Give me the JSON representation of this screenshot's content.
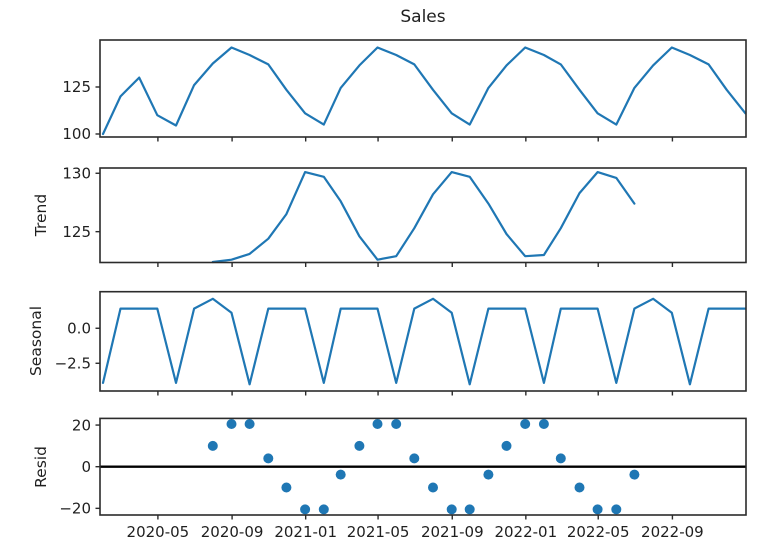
{
  "chart_data": {
    "type": "line",
    "title": "Sales",
    "description": "Seasonal decomposition: observed, trend, seasonal, residual panels sharing a monthly date axis",
    "colors": {
      "line": "#1f77b4",
      "marker": "#1f77b4",
      "zero_line": "#000000",
      "spine": "#2b2b2b",
      "text": "#1f1f1f"
    },
    "x_axis": {
      "tick_labels": [
        "2020-05",
        "2020-09",
        "2021-01",
        "2021-05",
        "2021-09",
        "2022-01",
        "2022-05",
        "2022-09"
      ],
      "tick_days": [
        91,
        214,
        336,
        456,
        579,
        701,
        821,
        944
      ],
      "range_days": [
        -5,
        1066
      ]
    },
    "months": [
      "2020-01",
      "2020-02",
      "2020-03",
      "2020-04",
      "2020-05",
      "2020-06",
      "2020-07",
      "2020-08",
      "2020-09",
      "2020-10",
      "2020-11",
      "2020-12",
      "2021-01",
      "2021-02",
      "2021-03",
      "2021-04",
      "2021-05",
      "2021-06",
      "2021-07",
      "2021-08",
      "2021-09",
      "2021-10",
      "2021-11",
      "2021-12",
      "2022-01",
      "2022-02",
      "2022-03",
      "2022-04",
      "2022-05",
      "2022-06",
      "2022-07",
      "2022-08",
      "2022-09",
      "2022-10",
      "2022-11",
      "2022-12"
    ],
    "point_days": [
      0,
      29,
      60,
      90,
      121,
      151,
      182,
      213,
      243,
      274,
      304,
      335,
      366,
      394,
      425,
      455,
      486,
      516,
      547,
      578,
      608,
      639,
      669,
      700,
      731,
      759,
      790,
      820,
      851,
      881,
      912,
      943,
      973,
      1004,
      1034,
      1065
    ],
    "panels": [
      {
        "name": "observed",
        "ylabel": "",
        "type": "line",
        "ylim": [
          98.4,
          150.0
        ],
        "yticks": [
          {
            "v": 125,
            "label": "125"
          },
          {
            "v": 100,
            "label": "100"
          }
        ],
        "zero_line": false,
        "values": [
          100,
          120,
          130,
          110,
          104.5,
          126,
          137.5,
          146,
          142,
          137,
          123.5,
          111,
          105,
          124.5,
          136.5,
          146,
          142,
          137,
          123.5,
          111,
          105,
          124.5,
          136.5,
          146,
          142,
          137,
          123.5,
          111,
          105,
          124.5,
          136.5,
          146,
          142,
          137,
          123.5,
          111
        ]
      },
      {
        "name": "trend",
        "ylabel": "Trend",
        "type": "line",
        "ylim": [
          122.36,
          130.45
        ],
        "yticks": [
          {
            "v": 130,
            "label": "130"
          },
          {
            "v": 125,
            "label": "125"
          }
        ],
        "zero_line": false,
        "values": [
          null,
          null,
          null,
          null,
          null,
          null,
          122.4,
          122.6,
          123.1,
          124.4,
          126.5,
          130.1,
          129.7,
          127.6,
          124.6,
          122.6,
          122.9,
          125.3,
          128.2,
          130.1,
          129.7,
          127.4,
          124.8,
          122.9,
          123.0,
          125.3,
          128.3,
          130.1,
          129.6,
          127.4,
          null,
          null,
          null,
          null,
          null,
          null
        ]
      },
      {
        "name": "seasonal",
        "ylabel": "Seasonal",
        "type": "line",
        "ylim": [
          -4.48,
          2.61
        ],
        "yticks": [
          {
            "v": 0,
            "label": "0.0"
          },
          {
            "v": -2.5,
            "label": "−2.5"
          }
        ],
        "zero_line": false,
        "values": [
          -3.9,
          1.4,
          1.4,
          1.4,
          -3.9,
          1.4,
          2.1,
          1.1,
          -4.0,
          1.4,
          1.4,
          1.4,
          -3.9,
          1.4,
          1.4,
          1.4,
          -3.9,
          1.4,
          2.1,
          1.1,
          -4.0,
          1.4,
          1.4,
          1.4,
          -3.9,
          1.4,
          1.4,
          1.4,
          -3.9,
          1.4,
          2.1,
          1.1,
          -4.0,
          1.4,
          1.4,
          1.4
        ]
      },
      {
        "name": "resid",
        "ylabel": "Resid",
        "type": "scatter",
        "ylim": [
          -23.2,
          23.2
        ],
        "yticks": [
          {
            "v": 20,
            "label": "20"
          },
          {
            "v": 0,
            "label": "0"
          },
          {
            "v": -20,
            "label": "−20"
          }
        ],
        "zero_line": true,
        "values": [
          null,
          null,
          null,
          null,
          null,
          null,
          10,
          20.5,
          20.5,
          4,
          -10,
          -20.5,
          -20.5,
          -3.8,
          10,
          20.5,
          20.5,
          4,
          -10,
          -20.5,
          -20.5,
          -3.8,
          10,
          20.5,
          20.5,
          4,
          -10,
          -20.5,
          -20.5,
          -3.8,
          null,
          null,
          null,
          null,
          null,
          null
        ]
      }
    ]
  }
}
